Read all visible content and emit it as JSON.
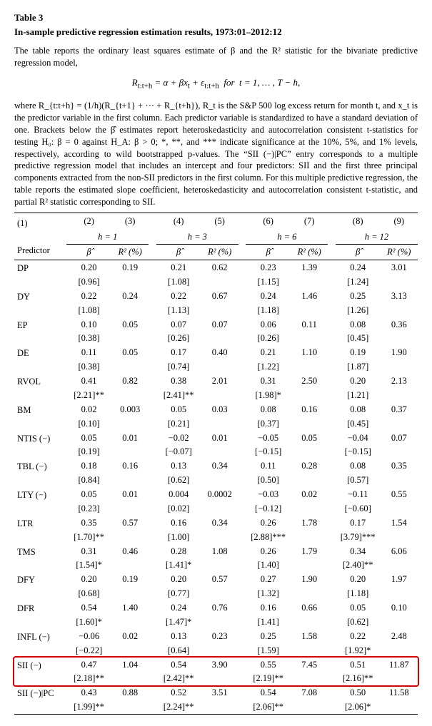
{
  "title": "Table 3",
  "subtitle": "In-sample predictive regression estimation results, 1973:01–2012:12",
  "caption1": "The table reports the ordinary least squares estimate of β and the R² statistic for the bivariate predictive regression model,",
  "equation": "R_{t:t+h} = α + βx_t + ε_{t:t+h}  for  t = 1, … , T − h,",
  "caption2": "where R_{t:t+h} = (1/h)(R_{t+1} + ··· + R_{t+h}), R_t is the S&P 500 log excess return for month t, and x_t is the predictor variable in the first column. Each predictor variable is standardized to have a standard deviation of one. Brackets below the β̂ estimates report heteroskedasticity and autocorrelation consistent t-statistics for testing H₀: β = 0 against H_A: β > 0; *, **, and *** indicate significance at the 10%, 5%, and 1% levels, respectively, according to wild bootstrapped p-values.  The “SII (−)|PC” entry corresponds to a multiple predictive regression model that includes an intercept and four predictors: SII and the first three principal components extracted from the non-SII predictors in the first column. For this multiple predictive regression, the table reports the estimated slope coefficient, heteroskedasticity and autocorrelation consistent t-statistic, and partial R² statistic corresponding to SII.",
  "col_nums": [
    "(1)",
    "(2)",
    "(3)",
    "(4)",
    "(5)",
    "(6)",
    "(7)",
    "(8)",
    "(9)"
  ],
  "h_labels": [
    "h = 1",
    "h = 3",
    "h = 6",
    "h = 12"
  ],
  "header_predictor": "Predictor",
  "header_beta": "β̂",
  "header_r2": "R² (%)",
  "rows": [
    {
      "p": "DP",
      "b": [
        "0.20",
        "0.21",
        "0.23",
        "0.24"
      ],
      "t": [
        "[0.96]",
        "[1.08]",
        "[1.15]",
        "[1.24]"
      ],
      "r": [
        "0.19",
        "0.62",
        "1.39",
        "3.01"
      ]
    },
    {
      "p": "DY",
      "b": [
        "0.22",
        "0.22",
        "0.24",
        "0.25"
      ],
      "t": [
        "[1.08]",
        "[1.13]",
        "[1.18]",
        "[1.26]"
      ],
      "r": [
        "0.24",
        "0.67",
        "1.46",
        "3.13"
      ]
    },
    {
      "p": "EP",
      "b": [
        "0.10",
        "0.07",
        "0.06",
        "0.08"
      ],
      "t": [
        "[0.38]",
        "[0.26]",
        "[0.26]",
        "[0.45]"
      ],
      "r": [
        "0.05",
        "0.07",
        "0.11",
        "0.36"
      ]
    },
    {
      "p": "DE",
      "b": [
        "0.11",
        "0.17",
        "0.21",
        "0.19"
      ],
      "t": [
        "[0.38]",
        "[0.74]",
        "[1.22]",
        "[1.87]"
      ],
      "r": [
        "0.05",
        "0.40",
        "1.10",
        "1.90"
      ]
    },
    {
      "p": "RVOL",
      "b": [
        "0.41",
        "0.38",
        "0.31",
        "0.20"
      ],
      "t": [
        "[2.21]**",
        "[2.41]**",
        "[1.98]*",
        "[1.21]"
      ],
      "r": [
        "0.82",
        "2.01",
        "2.50",
        "2.13"
      ]
    },
    {
      "p": "BM",
      "b": [
        "0.02",
        "0.05",
        "0.08",
        "0.08"
      ],
      "t": [
        "[0.10]",
        "[0.21]",
        "[0.37]",
        "[0.45]"
      ],
      "r": [
        "0.003",
        "0.03",
        "0.16",
        "0.37"
      ]
    },
    {
      "p": "NTIS (−)",
      "b": [
        "0.05",
        "−0.02",
        "−0.05",
        "−0.04"
      ],
      "t": [
        "[0.19]",
        "[−0.07]",
        "[−0.15]",
        "[−0.15]"
      ],
      "r": [
        "0.01",
        "0.01",
        "0.05",
        "0.07"
      ]
    },
    {
      "p": "TBL (−)",
      "b": [
        "0.18",
        "0.13",
        "0.11",
        "0.08"
      ],
      "t": [
        "[0.84]",
        "[0.62]",
        "[0.50]",
        "[0.57]"
      ],
      "r": [
        "0.16",
        "0.34",
        "0.28",
        "0.35"
      ]
    },
    {
      "p": "LTY (−)",
      "b": [
        "0.05",
        "0.004",
        "−0.03",
        "−0.11"
      ],
      "t": [
        "[0.23]",
        "[0.02]",
        "[−0.12]",
        "[−0.60]"
      ],
      "r": [
        "0.01",
        "0.0002",
        "0.02",
        "0.55"
      ]
    },
    {
      "p": "LTR",
      "b": [
        "0.35",
        "0.16",
        "0.26",
        "0.17"
      ],
      "t": [
        "[1.70]**",
        "[1.00]",
        "[2.88]***",
        "[3.79]***"
      ],
      "r": [
        "0.57",
        "0.34",
        "1.78",
        "1.54"
      ]
    },
    {
      "p": "TMS",
      "b": [
        "0.31",
        "0.28",
        "0.26",
        "0.34"
      ],
      "t": [
        "[1.54]*",
        "[1.41]*",
        "[1.40]",
        "[2.40]**"
      ],
      "r": [
        "0.46",
        "1.08",
        "1.79",
        "6.06"
      ]
    },
    {
      "p": "DFY",
      "b": [
        "0.20",
        "0.20",
        "0.27",
        "0.20"
      ],
      "t": [
        "[0.68]",
        "[0.77]",
        "[1.32]",
        "[1.18]"
      ],
      "r": [
        "0.19",
        "0.57",
        "1.90",
        "1.97"
      ]
    },
    {
      "p": "DFR",
      "b": [
        "0.54",
        "0.24",
        "0.16",
        "0.05"
      ],
      "t": [
        "[1.60]*",
        "[1.47]*",
        "[1.41]",
        "[0.62]"
      ],
      "r": [
        "1.40",
        "0.76",
        "0.66",
        "0.10"
      ]
    },
    {
      "p": "INFL (−)",
      "b": [
        "−0.06",
        "0.13",
        "0.25",
        "0.22"
      ],
      "t": [
        "[−0.22]",
        "[0.64]",
        "[1.59]",
        "[1.92]*"
      ],
      "r": [
        "0.02",
        "0.23",
        "1.58",
        "2.48"
      ]
    },
    {
      "p": "SII (−)",
      "b": [
        "0.47",
        "0.54",
        "0.55",
        "0.51"
      ],
      "t": [
        "[2.18]**",
        "[2.42]**",
        "[2.19]**",
        "[2.16]**"
      ],
      "r": [
        "1.04",
        "3.90",
        "7.45",
        "11.87"
      ],
      "hl": true
    },
    {
      "p": "SII (−)|PC",
      "b": [
        "0.43",
        "0.52",
        "0.54",
        "0.50"
      ],
      "t": [
        "[1.99]**",
        "[2.24]**",
        "[2.06]**",
        "[2.06]*"
      ],
      "r": [
        "0.88",
        "3.51",
        "7.08",
        "11.58"
      ]
    }
  ],
  "style": {
    "highlight_color": "#d40000",
    "font_family": "Times New Roman",
    "text_color": "#000000",
    "background": "#ffffff"
  }
}
